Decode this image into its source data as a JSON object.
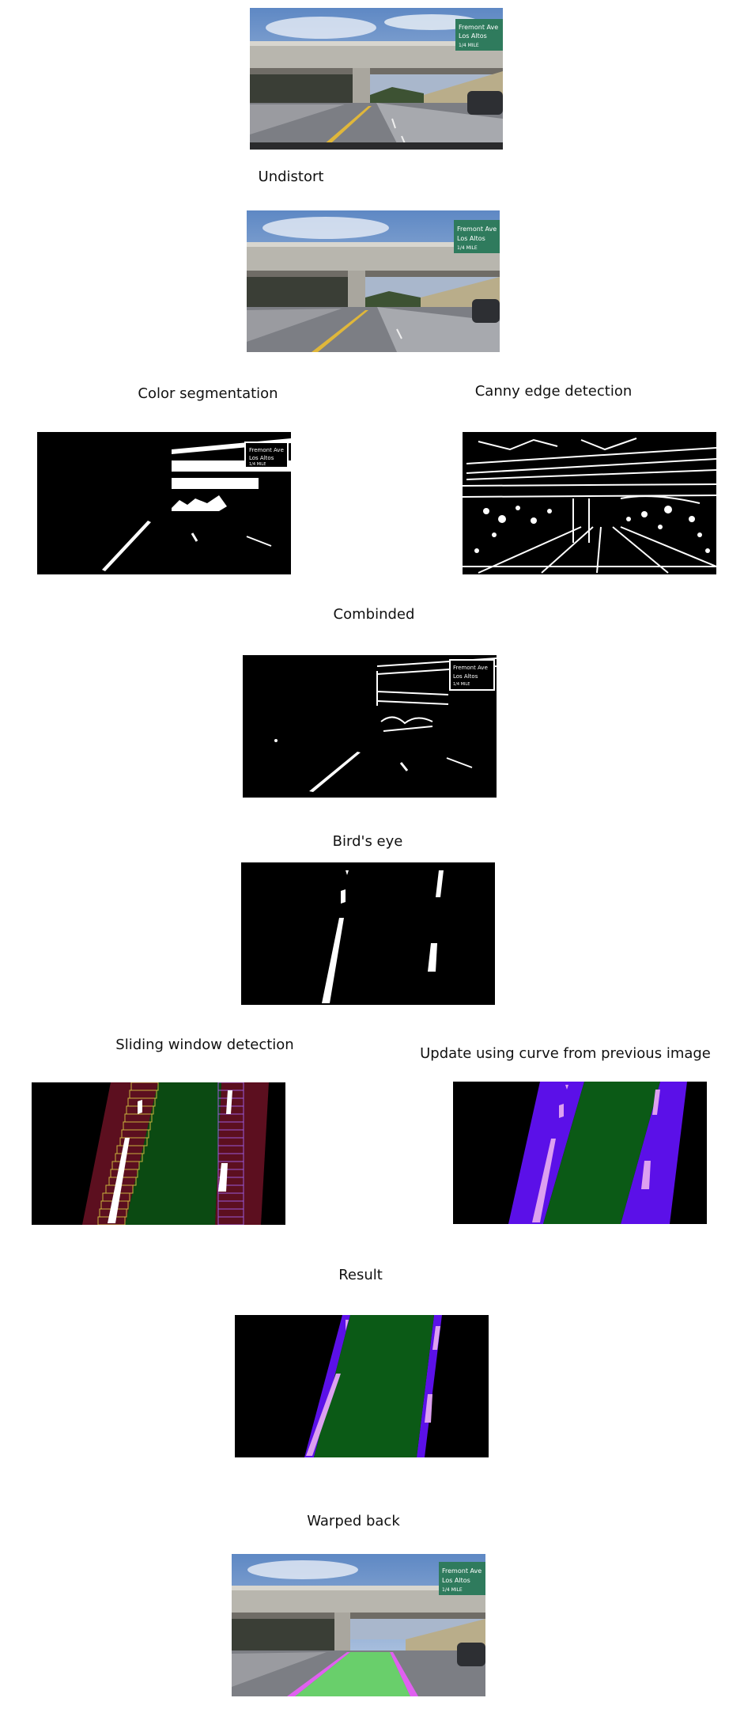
{
  "captions": {
    "undistort": "Undistort",
    "color_segmentation": "Color segmentation",
    "canny": "Canny edge detection",
    "combined": "Combinded",
    "birds_eye": "Bird's eye",
    "sliding_window": "Sliding window detection",
    "update_curve": "Update using curve from previous image",
    "result": "Result",
    "warped_back": "Warped back"
  },
  "sign_text": {
    "line1": "Fremont Ave",
    "line2": "Los Altos",
    "line3": "1/4 MILE"
  },
  "colors": {
    "sky": "#9db8d8",
    "road": "#8d8f94",
    "sign": "#2f7b5d",
    "lane_fill_green": "#0b5a16",
    "lane_line_purple": "#5b10e8",
    "lane_pixels_pink": "#dda0f0",
    "window_yellow": "#c8b23c",
    "dark_red": "#5c0f1f",
    "overlay_green": "#66dd66",
    "overlay_magenta": "#e060f0"
  }
}
